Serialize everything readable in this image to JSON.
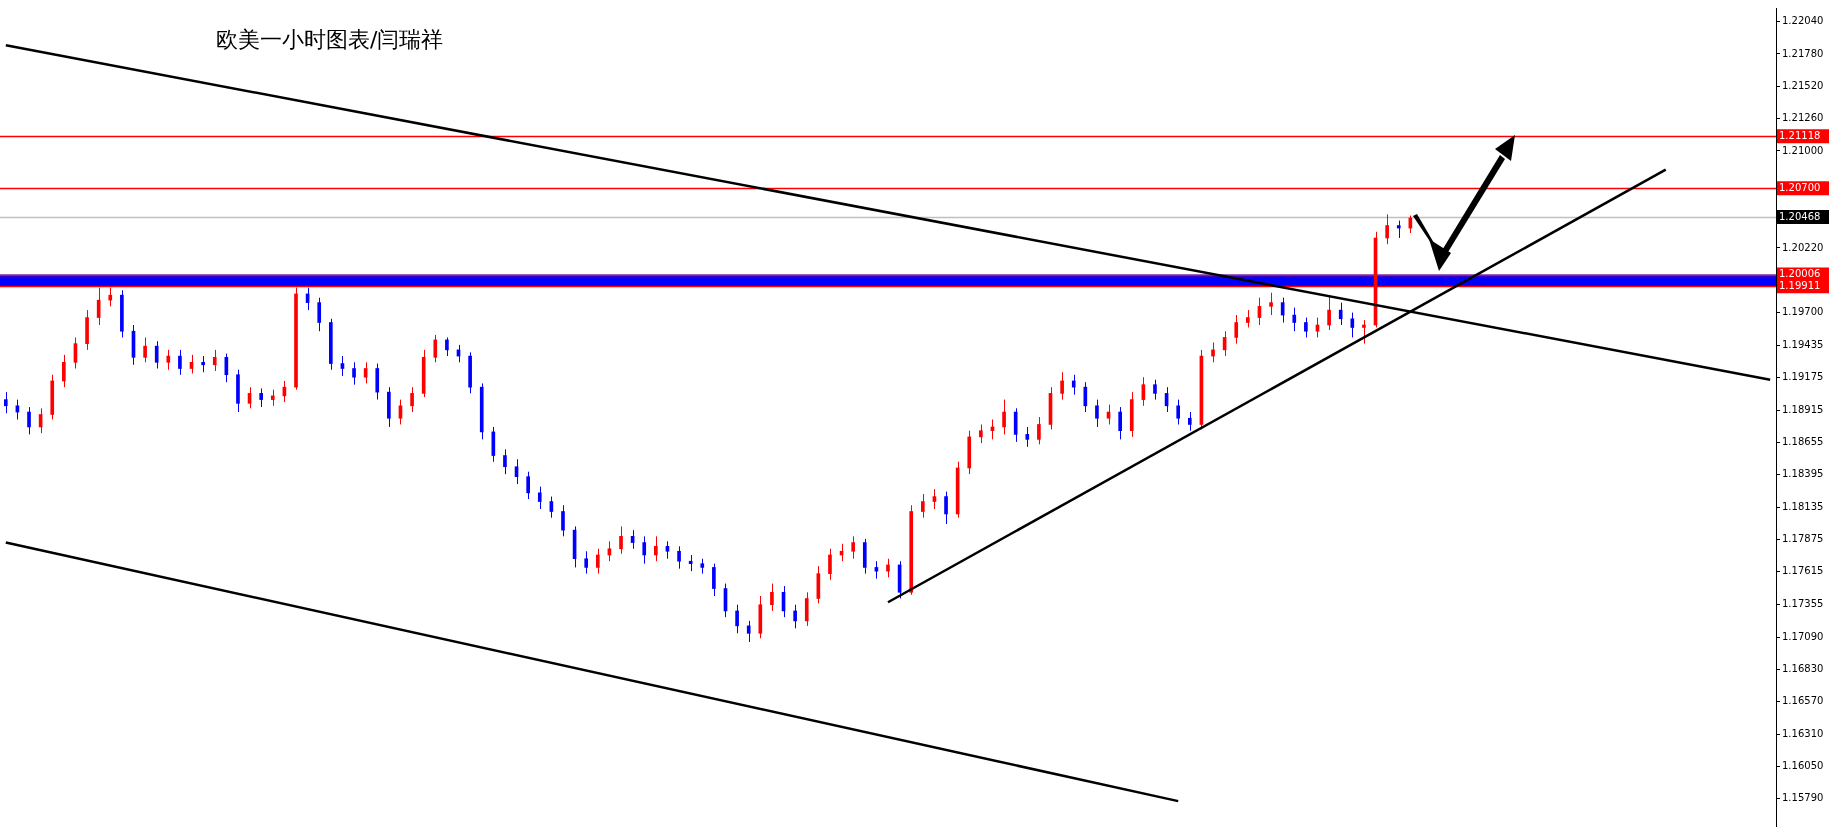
{
  "chart_data": {
    "type": "candlestick",
    "title": "欧美一小时图表/闫瑞祥",
    "grid": false,
    "tick_labels": "y",
    "ylim": [
      1.1557,
      1.2215
    ],
    "categories": [
      null,
      null,
      null,
      null,
      null,
      null,
      null,
      null,
      null,
      null,
      null,
      null,
      null,
      null,
      null,
      null,
      null,
      null,
      null,
      null,
      null,
      null,
      null,
      null,
      null,
      null,
      null,
      null,
      null,
      null,
      null,
      null,
      null,
      null,
      null,
      null,
      null,
      null,
      null,
      null,
      null,
      null,
      null,
      null,
      null,
      null,
      null,
      null,
      null,
      null,
      null,
      null,
      null,
      null,
      null,
      null,
      null,
      null,
      null,
      null,
      null,
      null,
      null,
      null,
      null,
      null,
      null,
      null,
      null,
      null,
      null,
      null,
      null,
      null,
      null,
      null,
      null,
      null,
      null,
      null,
      null,
      null,
      null,
      null,
      null,
      null,
      null,
      null,
      null,
      null,
      null,
      null,
      null,
      null,
      null,
      null,
      null,
      null,
      null,
      null,
      null,
      null,
      null,
      null,
      null,
      null,
      null,
      null,
      null,
      null,
      null,
      null,
      null,
      null,
      null,
      null,
      null,
      null,
      null,
      null,
      null,
      null,
      null,
      null,
      null,
      null,
      null,
      null,
      null,
      null,
      null,
      null,
      null,
      null,
      null,
      null,
      null,
      null,
      null,
      null,
      null,
      null,
      null,
      null,
      null,
      null,
      null,
      null,
      null,
      null,
      null,
      null,
      null
    ],
    "yticks": [
      {
        "value": 1.2204,
        "label": "1.22040"
      },
      {
        "value": 1.2178,
        "label": "1.21780"
      },
      {
        "value": 1.2152,
        "label": "1.21520"
      },
      {
        "value": 1.2126,
        "label": "1.21260"
      },
      {
        "value": 1.21,
        "label": "1.21000"
      },
      {
        "value": 1.2022,
        "label": "1.20220"
      },
      {
        "value": 1.197,
        "label": "1.19700"
      },
      {
        "value": 1.19435,
        "label": "1.19435"
      },
      {
        "value": 1.19175,
        "label": "1.19175"
      },
      {
        "value": 1.18915,
        "label": "1.18915"
      },
      {
        "value": 1.18655,
        "label": "1.18655"
      },
      {
        "value": 1.18395,
        "label": "1.18395"
      },
      {
        "value": 1.18135,
        "label": "1.18135"
      },
      {
        "value": 1.17875,
        "label": "1.17875"
      },
      {
        "value": 1.17615,
        "label": "1.17615"
      },
      {
        "value": 1.17355,
        "label": "1.17355"
      },
      {
        "value": 1.1709,
        "label": "1.17090"
      },
      {
        "value": 1.1683,
        "label": "1.16830"
      },
      {
        "value": 1.1657,
        "label": "1.16570"
      },
      {
        "value": 1.1631,
        "label": "1.16310"
      },
      {
        "value": 1.1605,
        "label": "1.16050"
      },
      {
        "value": 1.1579,
        "label": "1.15790"
      }
    ],
    "ref_lines": [
      {
        "axis": "y",
        "value": 1.21118,
        "label": "1.21118",
        "color": "#ff0000"
      },
      {
        "axis": "y",
        "value": 1.207,
        "label": "1.20700",
        "color": "#ff0000"
      },
      {
        "axis": "y",
        "value": 1.20468,
        "label": "1.20468",
        "color": "#c0c0c0"
      },
      {
        "axis": "y",
        "value": 1.20006,
        "label": "1.20006",
        "color": "#ff0000"
      },
      {
        "axis": "y",
        "value": 1.19911,
        "label": "1.19911",
        "color": "#ff0000"
      }
    ],
    "bands": [
      {
        "axis": "y",
        "from": 1.19911,
        "to": 1.20006,
        "color": "#0000ff"
      }
    ],
    "series": [
      {
        "type": "candlestick",
        "colors": [
          "#0000ff",
          "#0000ff",
          "#0000ff",
          "#ff0000",
          "#ff0000",
          "#ff0000",
          "#ff0000",
          "#ff0000",
          "#ff0000",
          "#ff0000",
          "#0000ff",
          "#0000ff",
          "#ff0000",
          "#0000ff",
          "#ff0000",
          "#0000ff",
          "#ff0000",
          "#0000ff",
          "#ff0000",
          "#0000ff",
          "#0000ff",
          "#ff0000",
          "#0000ff",
          "#ff0000",
          "#ff0000",
          "#ff0000",
          "#0000ff",
          "#0000ff",
          "#0000ff",
          "#0000ff",
          "#0000ff",
          "#ff0000",
          "#0000ff",
          "#0000ff",
          "#ff0000",
          "#ff0000",
          "#ff0000",
          "#ff0000",
          "#0000ff",
          "#0000ff",
          "#0000ff",
          "#0000ff",
          "#0000ff",
          "#0000ff",
          "#0000ff",
          "#0000ff",
          "#0000ff",
          "#0000ff",
          "#0000ff",
          "#0000ff",
          "#0000ff",
          "#ff0000",
          "#ff0000",
          "#ff0000",
          "#0000ff",
          "#0000ff",
          "#ff0000",
          "#0000ff",
          "#0000ff",
          "#0000ff",
          "#0000ff",
          "#0000ff",
          "#0000ff",
          "#0000ff",
          "#0000ff",
          "#ff0000",
          "#ff0000",
          "#0000ff",
          "#0000ff",
          "#ff0000",
          "#ff0000",
          "#ff0000",
          "#ff0000",
          "#ff0000",
          "#0000ff",
          "#0000ff",
          "#ff0000",
          "#0000ff",
          "#ff0000",
          "#ff0000",
          "#ff0000",
          "#0000ff",
          "#ff0000",
          "#ff0000",
          "#ff0000",
          "#ff0000",
          "#ff0000",
          "#0000ff",
          "#0000ff",
          "#ff0000",
          "#ff0000",
          "#ff0000",
          "#0000ff",
          "#0000ff",
          "#0000ff",
          "#ff0000",
          "#0000ff",
          "#ff0000",
          "#ff0000",
          "#0000ff",
          "#0000ff",
          "#0000ff",
          "#0000ff",
          "#ff0000",
          "#ff0000",
          "#ff0000",
          "#ff0000",
          "#ff0000",
          "#ff0000",
          "#ff0000",
          "#0000ff",
          "#0000ff",
          "#0000ff",
          "#ff0000",
          "#ff0000",
          "#0000ff",
          "#0000ff",
          "#ff0000",
          "#ff0000",
          "#ff0000",
          "#0000ff",
          "#ff0000",
          null,
          null,
          null,
          null,
          null,
          null,
          null,
          null,
          null,
          null,
          null,
          null,
          null,
          null,
          null,
          null,
          null,
          null,
          null,
          null,
          null,
          null,
          null,
          null,
          null,
          null,
          null,
          null,
          null,
          null,
          null
        ],
        "ohlc": [
          [
            1.19,
            1.1906,
            1.1889,
            1.1895
          ],
          [
            1.1895,
            1.19,
            1.1884,
            1.189
          ],
          [
            1.189,
            1.1894,
            1.1872,
            1.1878
          ],
          [
            1.1878,
            1.1893,
            1.1873,
            1.1888
          ],
          [
            1.1888,
            1.192,
            1.1884,
            1.1915
          ],
          [
            1.1915,
            1.1936,
            1.191,
            1.193
          ],
          [
            1.193,
            1.195,
            1.1925,
            1.1945
          ],
          [
            1.1945,
            1.1972,
            1.194,
            1.1966
          ],
          [
            1.1966,
            1.199,
            1.196,
            1.198
          ],
          [
            1.198,
            1.199,
            1.1975,
            1.1984
          ],
          [
            1.1984,
            1.1988,
            1.195,
            1.1955
          ],
          [
            1.1955,
            1.196,
            1.1928,
            1.1934
          ],
          [
            1.1934,
            1.195,
            1.193,
            1.1943
          ],
          [
            1.1943,
            1.1947,
            1.1925,
            1.193
          ],
          [
            1.193,
            1.194,
            1.1924,
            1.1935
          ],
          [
            1.1935,
            1.194,
            1.192,
            1.1925
          ],
          [
            1.1925,
            1.1936,
            1.1921,
            1.193
          ],
          [
            1.193,
            1.1935,
            1.1922,
            1.1928
          ],
          [
            1.1928,
            1.194,
            1.1923,
            1.1934
          ],
          [
            1.1934,
            1.1937,
            1.1914,
            1.192
          ],
          [
            1.192,
            1.1924,
            1.189,
            1.1897
          ],
          [
            1.1897,
            1.191,
            1.1893,
            1.1905
          ],
          [
            1.1905,
            1.1909,
            1.1894,
            1.19
          ],
          [
            1.19,
            1.1908,
            1.1895,
            1.1903
          ],
          [
            1.1903,
            1.1915,
            1.1898,
            1.191
          ],
          [
            1.191,
            1.199,
            1.1908,
            1.1985
          ],
          [
            1.1985,
            1.199,
            1.1972,
            1.1978
          ],
          [
            1.1978,
            1.1982,
            1.1955,
            1.1962
          ],
          [
            1.1962,
            1.1965,
            1.1924,
            1.1929
          ],
          [
            1.1929,
            1.1935,
            1.1919,
            1.1925
          ],
          [
            1.1925,
            1.193,
            1.1912,
            1.1918
          ],
          [
            1.1918,
            1.193,
            1.1913,
            1.1925
          ],
          [
            1.1925,
            1.1929,
            1.19,
            1.1906
          ],
          [
            1.1906,
            1.191,
            1.1878,
            1.1885
          ],
          [
            1.1885,
            1.19,
            1.188,
            1.1895
          ],
          [
            1.1895,
            1.191,
            1.189,
            1.1905
          ],
          [
            1.1905,
            1.194,
            1.1902,
            1.1934
          ],
          [
            1.1934,
            1.1952,
            1.193,
            1.1948
          ],
          [
            1.1948,
            1.195,
            1.1935,
            1.194
          ],
          [
            1.194,
            1.1944,
            1.193,
            1.1935
          ],
          [
            1.1935,
            1.1938,
            1.1905,
            1.191
          ],
          [
            1.191,
            1.1913,
            1.1868,
            1.1874
          ],
          [
            1.1874,
            1.1878,
            1.185,
            1.1855
          ],
          [
            1.1855,
            1.186,
            1.184,
            1.1846
          ],
          [
            1.1846,
            1.1852,
            1.1832,
            1.1838
          ],
          [
            1.1838,
            1.1842,
            1.182,
            1.1825
          ],
          [
            1.1825,
            1.183,
            1.1812,
            1.1818
          ],
          [
            1.1818,
            1.1822,
            1.1805,
            1.181
          ],
          [
            1.181,
            1.1815,
            1.179,
            1.1795
          ],
          [
            1.1795,
            1.1798,
            1.1765,
            1.1772
          ],
          [
            1.1772,
            1.1778,
            1.176,
            1.1765
          ],
          [
            1.1765,
            1.178,
            1.176,
            1.1775
          ],
          [
            1.1775,
            1.1786,
            1.177,
            1.178
          ],
          [
            1.178,
            1.1798,
            1.1776,
            1.179
          ],
          [
            1.179,
            1.1795,
            1.178,
            1.1785
          ],
          [
            1.1785,
            1.179,
            1.1768,
            1.1775
          ],
          [
            1.1775,
            1.179,
            1.177,
            1.1782
          ],
          [
            1.1782,
            1.1786,
            1.1772,
            1.1778
          ],
          [
            1.1778,
            1.1782,
            1.1764,
            1.177
          ],
          [
            1.177,
            1.1775,
            1.1762,
            1.1768
          ],
          [
            1.1768,
            1.1772,
            1.176,
            1.1765
          ],
          [
            1.1765,
            1.1768,
            1.1742,
            1.1748
          ],
          [
            1.1748,
            1.1752,
            1.1725,
            1.173
          ],
          [
            1.173,
            1.1735,
            1.1712,
            1.1718
          ],
          [
            1.1718,
            1.1722,
            1.1705,
            1.1712
          ],
          [
            1.1712,
            1.1742,
            1.1708,
            1.1735
          ],
          [
            1.1735,
            1.1752,
            1.173,
            1.1745
          ],
          [
            1.1745,
            1.175,
            1.1725,
            1.173
          ],
          [
            1.173,
            1.1735,
            1.1716,
            1.1722
          ],
          [
            1.1722,
            1.1745,
            1.1718,
            1.174
          ],
          [
            1.174,
            1.1766,
            1.1736,
            1.176
          ],
          [
            1.176,
            1.178,
            1.1755,
            1.1775
          ],
          [
            1.1775,
            1.1784,
            1.177,
            1.1778
          ],
          [
            1.1778,
            1.179,
            1.1772,
            1.1785
          ],
          [
            1.1785,
            1.1788,
            1.176,
            1.1765
          ],
          [
            1.1765,
            1.177,
            1.1756,
            1.1762
          ],
          [
            1.1762,
            1.1772,
            1.1757,
            1.1767
          ],
          [
            1.1767,
            1.177,
            1.174,
            1.1745
          ],
          [
            1.1745,
            1.1815,
            1.1743,
            1.181
          ],
          [
            1.181,
            1.1824,
            1.1805,
            1.1818
          ],
          [
            1.1818,
            1.1828,
            1.1812,
            1.1822
          ],
          [
            1.1822,
            1.1826,
            1.18,
            1.1808
          ],
          [
            1.1808,
            1.185,
            1.1805,
            1.1845
          ],
          [
            1.1845,
            1.1875,
            1.184,
            1.187
          ],
          [
            1.187,
            1.188,
            1.1865,
            1.1875
          ],
          [
            1.1875,
            1.1884,
            1.1868,
            1.1878
          ],
          [
            1.1878,
            1.19,
            1.1872,
            1.189
          ],
          [
            1.189,
            1.1893,
            1.1866,
            1.1872
          ],
          [
            1.1872,
            1.1878,
            1.1862,
            1.1868
          ],
          [
            1.1868,
            1.1886,
            1.1864,
            1.188
          ],
          [
            1.188,
            1.191,
            1.1876,
            1.1905
          ],
          [
            1.1905,
            1.1922,
            1.19,
            1.1915
          ],
          [
            1.1915,
            1.192,
            1.1904,
            1.191
          ],
          [
            1.191,
            1.1914,
            1.189,
            1.1895
          ],
          [
            1.1895,
            1.19,
            1.1878,
            1.1885
          ],
          [
            1.1885,
            1.1896,
            1.188,
            1.189
          ],
          [
            1.189,
            1.1894,
            1.1868,
            1.1875
          ],
          [
            1.1875,
            1.1906,
            1.187,
            1.19
          ],
          [
            1.19,
            1.1918,
            1.1895,
            1.1912
          ],
          [
            1.1912,
            1.1916,
            1.19,
            1.1905
          ],
          [
            1.1905,
            1.191,
            1.189,
            1.1895
          ],
          [
            1.1895,
            1.19,
            1.188,
            1.1885
          ],
          [
            1.1885,
            1.189,
            1.1875,
            1.188
          ],
          [
            1.188,
            1.194,
            1.1876,
            1.1935
          ],
          [
            1.1935,
            1.1946,
            1.193,
            1.194
          ],
          [
            1.194,
            1.1955,
            1.1935,
            1.195
          ],
          [
            1.195,
            1.1968,
            1.1945,
            1.1962
          ],
          [
            1.1962,
            1.1972,
            1.1958,
            1.1966
          ],
          [
            1.1966,
            1.1982,
            1.196,
            1.1975
          ],
          [
            1.1975,
            1.1986,
            1.1968,
            1.1978
          ],
          [
            1.1978,
            1.1982,
            1.1962,
            1.1968
          ],
          [
            1.1968,
            1.1974,
            1.1955,
            1.1962
          ],
          [
            1.1962,
            1.1966,
            1.195,
            1.1955
          ],
          [
            1.1955,
            1.1966,
            1.195,
            1.196
          ],
          [
            1.196,
            1.1984,
            1.1956,
            1.1972
          ],
          [
            1.1972,
            1.1978,
            1.196,
            1.1965
          ],
          [
            1.1965,
            1.197,
            1.195,
            1.1958
          ],
          [
            1.1958,
            1.1964,
            1.1945,
            1.196
          ],
          [
            1.196,
            1.2035,
            1.1958,
            1.203
          ],
          [
            1.203,
            1.2049,
            1.2025,
            1.204
          ],
          [
            1.204,
            1.2044,
            1.203,
            1.2038
          ],
          [
            1.2038,
            1.2048,
            1.2034,
            1.2046
          ],
          null,
          null,
          null,
          null,
          null,
          null,
          null,
          null,
          null,
          null,
          null,
          null,
          null,
          null,
          null,
          null,
          null,
          null,
          null,
          null,
          null,
          null,
          null,
          null,
          null,
          null,
          null,
          null,
          null,
          null,
          null
        ]
      },
      {
        "type": "line",
        "color": "#000000",
        "values": [
          1.2185,
          null,
          null,
          null,
          null,
          null,
          null,
          null,
          null,
          null,
          null,
          null,
          null,
          null,
          null,
          null,
          null,
          null,
          null,
          null,
          null,
          null,
          null,
          null,
          null,
          null,
          null,
          null,
          null,
          null,
          null,
          null,
          null,
          null,
          null,
          null,
          null,
          null,
          null,
          null,
          null,
          null,
          null,
          null,
          null,
          null,
          null,
          null,
          null,
          null,
          null,
          null,
          null,
          null,
          null,
          null,
          null,
          null,
          null,
          null,
          null,
          null,
          null,
          null,
          null,
          null,
          null,
          null,
          null,
          null,
          null,
          null,
          null,
          null,
          null,
          null,
          null,
          null,
          null,
          null,
          null,
          null,
          null,
          null,
          null,
          null,
          null,
          null,
          null,
          null,
          null,
          null,
          null,
          null,
          null,
          null,
          null,
          null,
          null,
          null,
          null,
          null,
          null,
          null,
          null,
          null,
          null,
          null,
          null,
          null,
          null,
          null,
          null,
          null,
          null,
          null,
          null,
          null,
          null,
          null,
          null,
          null,
          null,
          null,
          null,
          null,
          null,
          null,
          null,
          null,
          null,
          null,
          null,
          null,
          null,
          null,
          null,
          null,
          null,
          null,
          null,
          null,
          null,
          null,
          null,
          null,
          null,
          null,
          null,
          null,
          null,
          null,
          1.1916
        ]
      },
      {
        "type": "line",
        "color": "#000000",
        "values": [
          1.1785,
          null,
          null,
          null,
          null,
          null,
          null,
          null,
          null,
          null,
          null,
          null,
          null,
          null,
          null,
          null,
          null,
          null,
          null,
          null,
          null,
          null,
          null,
          null,
          null,
          null,
          null,
          null,
          null,
          null,
          null,
          null,
          null,
          null,
          null,
          null,
          null,
          null,
          null,
          null,
          null,
          null,
          null,
          null,
          null,
          null,
          null,
          null,
          null,
          null,
          null,
          null,
          null,
          null,
          null,
          null,
          null,
          null,
          null,
          null,
          null,
          null,
          null,
          null,
          null,
          null,
          null,
          null,
          null,
          null,
          null,
          null,
          null,
          null,
          null,
          null,
          null,
          null,
          null,
          null,
          null,
          null,
          null,
          null,
          null,
          null,
          null,
          null,
          null,
          null,
          null,
          null,
          null,
          null,
          null,
          null,
          null,
          null,
          null,
          null,
          null,
          1.1577,
          null,
          null,
          null,
          null,
          null,
          null,
          null,
          null,
          null,
          null,
          null,
          null,
          null,
          null,
          null,
          null,
          null,
          null,
          null,
          null,
          null,
          null,
          null,
          null,
          null,
          null,
          null,
          null,
          null,
          null,
          null,
          null,
          null,
          null,
          null,
          null,
          null,
          null,
          null,
          null,
          null,
          null,
          null,
          null,
          null,
          null,
          null,
          null,
          null,
          null,
          null
        ]
      },
      {
        "type": "line",
        "color": "#000000",
        "values": [
          null,
          null,
          null,
          null,
          null,
          null,
          null,
          null,
          null,
          null,
          null,
          null,
          null,
          null,
          null,
          null,
          null,
          null,
          null,
          null,
          null,
          null,
          null,
          null,
          null,
          null,
          null,
          null,
          null,
          null,
          null,
          null,
          null,
          null,
          null,
          null,
          null,
          null,
          null,
          null,
          null,
          null,
          null,
          null,
          null,
          null,
          null,
          null,
          null,
          null,
          null,
          null,
          null,
          null,
          null,
          null,
          null,
          null,
          null,
          null,
          null,
          null,
          null,
          null,
          null,
          null,
          null,
          null,
          null,
          null,
          null,
          null,
          null,
          null,
          null,
          null,
          1.1737,
          null,
          null,
          null,
          null,
          null,
          null,
          null,
          null,
          null,
          null,
          null,
          null,
          null,
          null,
          null,
          null,
          null,
          null,
          null,
          null,
          null,
          null,
          null,
          null,
          null,
          null,
          null,
          null,
          null,
          null,
          null,
          null,
          null,
          null,
          null,
          null,
          null,
          null,
          null,
          null,
          null,
          null,
          null,
          null,
          null,
          null,
          null,
          null,
          null,
          null,
          null,
          null,
          null,
          null,
          null,
          null,
          null,
          null,
          null,
          null,
          null,
          null,
          null,
          null,
          null,
          null,
          1.2085,
          null,
          null,
          null,
          null,
          null,
          null,
          null,
          null,
          null
        ]
      }
    ]
  }
}
